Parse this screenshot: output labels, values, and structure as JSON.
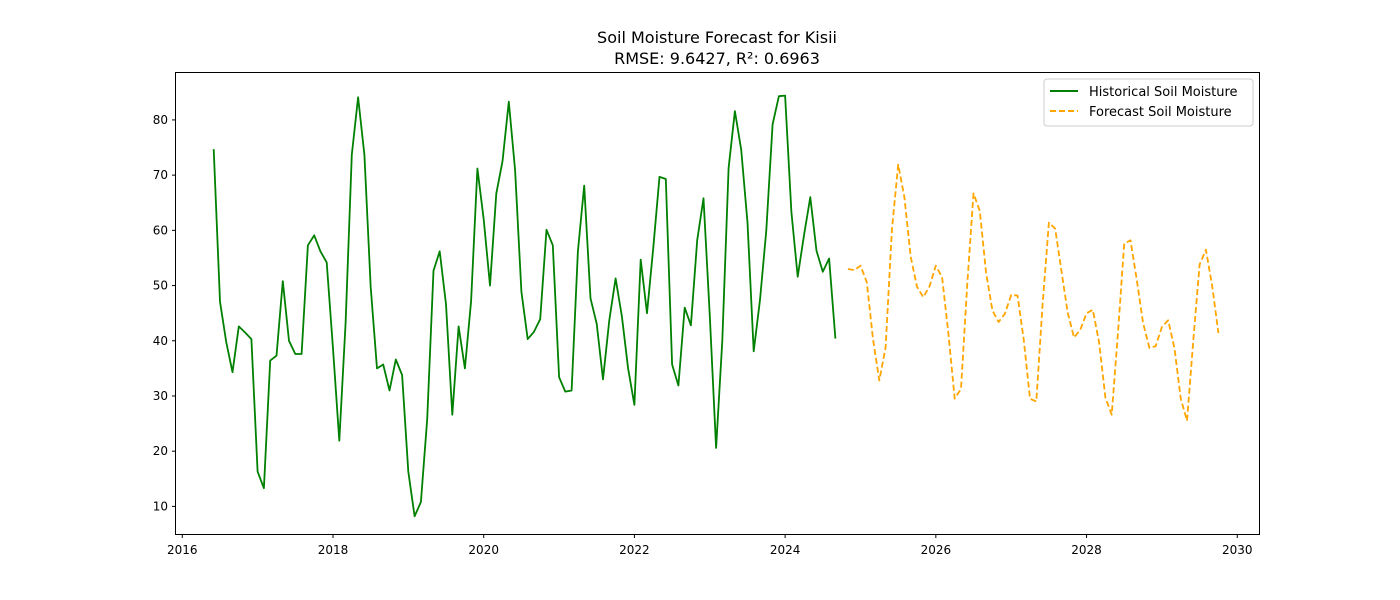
{
  "chart_data": {
    "type": "line",
    "title": "Soil Moisture Forecast for Kisii",
    "subtitle": "RMSE: 9.6427, R²: 0.6963",
    "xlabel": "",
    "ylabel": "",
    "xlim": [
      "2015-12-01",
      "2030-04-15"
    ],
    "ylim": [
      5,
      88.5
    ],
    "xticks": [
      "2016",
      "2018",
      "2020",
      "2022",
      "2024",
      "2026",
      "2028",
      "2030"
    ],
    "yticks": [
      10,
      20,
      30,
      40,
      50,
      60,
      70,
      80
    ],
    "grid": false,
    "legend_position": "top-right",
    "series": [
      {
        "name": "Historical Soil Moisture",
        "color": "#008000",
        "style": "solid",
        "x": [
          "2016-06",
          "2016-07",
          "2016-08",
          "2016-09",
          "2016-10",
          "2016-11",
          "2016-12",
          "2017-01",
          "2017-02",
          "2017-03",
          "2017-04",
          "2017-05",
          "2017-06",
          "2017-07",
          "2017-08",
          "2017-09",
          "2017-10",
          "2017-11",
          "2017-12",
          "2018-01",
          "2018-02",
          "2018-03",
          "2018-04",
          "2018-05",
          "2018-06",
          "2018-07",
          "2018-08",
          "2018-09",
          "2018-10",
          "2018-11",
          "2018-12",
          "2019-01",
          "2019-02",
          "2019-03",
          "2019-04",
          "2019-05",
          "2019-06",
          "2019-07",
          "2019-08",
          "2019-09",
          "2019-10",
          "2019-11",
          "2019-12",
          "2020-01",
          "2020-02",
          "2020-03",
          "2020-04",
          "2020-05",
          "2020-06",
          "2020-07",
          "2020-08",
          "2020-09",
          "2020-10",
          "2020-11",
          "2020-12",
          "2021-01",
          "2021-02",
          "2021-03",
          "2021-04",
          "2021-05",
          "2021-06",
          "2021-07",
          "2021-08",
          "2021-09",
          "2021-10",
          "2021-11",
          "2021-12",
          "2022-01",
          "2022-02",
          "2022-03",
          "2022-04",
          "2022-05",
          "2022-06",
          "2022-07",
          "2022-08",
          "2022-09",
          "2022-10",
          "2022-11",
          "2022-12",
          "2023-01",
          "2023-02",
          "2023-03",
          "2023-04",
          "2023-05",
          "2023-06",
          "2023-07",
          "2023-08",
          "2023-09",
          "2023-10",
          "2023-11",
          "2023-12",
          "2024-01",
          "2024-02",
          "2024-03",
          "2024-04",
          "2024-05",
          "2024-06",
          "2024-07",
          "2024-08",
          "2024-09"
        ],
        "values": [
          74.7,
          47.1,
          39.8,
          34.3,
          42.6,
          41.5,
          40.3,
          16.3,
          13.3,
          36.4,
          37.3,
          50.8,
          40.0,
          37.6,
          37.6,
          57.3,
          59.1,
          56.2,
          54.2,
          38.6,
          21.9,
          43.2,
          73.7,
          84.1,
          73.7,
          49.7,
          35.0,
          35.7,
          31.0,
          36.6,
          33.8,
          16.3,
          8.2,
          10.8,
          25.8,
          52.7,
          56.2,
          46.6,
          26.6,
          42.6,
          35.0,
          47.2,
          71.2,
          62.0,
          50.0,
          66.7,
          72.5,
          83.3,
          70.9,
          48.9,
          40.3,
          41.6,
          43.9,
          60.1,
          57.3,
          33.4,
          30.8,
          31.0,
          56.2,
          68.1,
          47.7,
          43.1,
          33.0,
          43.7,
          51.3,
          44.4,
          35.0,
          28.4,
          54.7,
          45.0,
          56.9,
          69.7,
          69.3,
          35.7,
          31.9,
          46.0,
          42.8,
          58.2,
          65.8,
          44.5,
          20.6,
          40.0,
          71.3,
          81.6,
          74.6,
          61.4,
          38.1,
          47.4,
          60.0,
          79.2,
          84.3,
          84.4,
          63.3,
          51.6,
          59.1,
          66.0,
          56.3,
          52.5,
          54.9,
          40.4
        ]
      },
      {
        "name": "Forecast Soil Moisture",
        "color": "#FFA500",
        "style": "dashed",
        "x": [
          "2024-11",
          "2024-12",
          "2025-01",
          "2025-02",
          "2025-03",
          "2025-04",
          "2025-05",
          "2025-06",
          "2025-07",
          "2025-08",
          "2025-09",
          "2025-10",
          "2025-11",
          "2025-12",
          "2026-01",
          "2026-02",
          "2026-03",
          "2026-04",
          "2026-05",
          "2026-06",
          "2026-07",
          "2026-08",
          "2026-09",
          "2026-10",
          "2026-11",
          "2026-12",
          "2027-01",
          "2027-02",
          "2027-03",
          "2027-04",
          "2027-05",
          "2027-06",
          "2027-07",
          "2027-08",
          "2027-09",
          "2027-10",
          "2027-11",
          "2027-12",
          "2028-01",
          "2028-02",
          "2028-03",
          "2028-04",
          "2028-05",
          "2028-06",
          "2028-07",
          "2028-08",
          "2028-09",
          "2028-10",
          "2028-11",
          "2028-12",
          "2029-01",
          "2029-02",
          "2029-03",
          "2029-04",
          "2029-05",
          "2029-06",
          "2029-07",
          "2029-08",
          "2029-09",
          "2029-10"
        ],
        "values": [
          53.0,
          52.8,
          53.6,
          50.6,
          40.3,
          32.8,
          38.8,
          60.1,
          71.9,
          66.0,
          55.2,
          49.8,
          47.9,
          49.9,
          53.6,
          51.5,
          41.3,
          29.5,
          31.3,
          50.1,
          66.7,
          63.5,
          52.3,
          45.5,
          43.4,
          44.9,
          48.3,
          48.2,
          40.1,
          29.5,
          29.0,
          46.6,
          61.4,
          60.3,
          52.7,
          45.1,
          40.6,
          42.0,
          45.0,
          45.6,
          39.7,
          29.7,
          26.6,
          41.5,
          57.6,
          58.2,
          51.0,
          43.2,
          38.7,
          39.0,
          42.5,
          43.7,
          38.6,
          29.5,
          25.5,
          40.1,
          53.8,
          56.5,
          49.9,
          41.4
        ]
      }
    ]
  }
}
